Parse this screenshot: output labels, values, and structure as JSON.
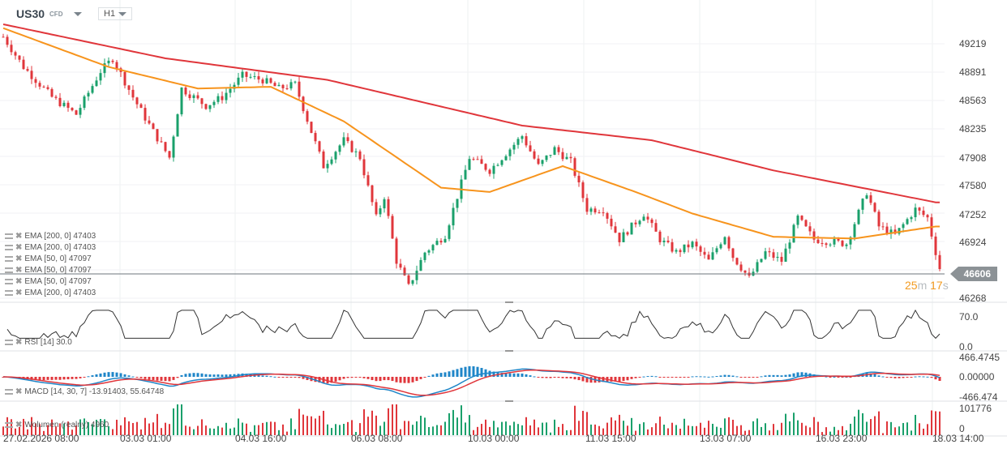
{
  "header": {
    "symbol": "US30",
    "type": "CFD",
    "timeframe": "H1"
  },
  "countdown": {
    "min": "25",
    "min_unit": "m",
    "sec": "17",
    "sec_unit": "s"
  },
  "current_price": "46606",
  "legends": {
    "ema": [
      "EMA [200, 0] 47403",
      "EMA [200, 0] 47403",
      "EMA [50, 0] 47097",
      "EMA [50, 0] 47097",
      "EMA [50, 0] 47097",
      "EMA [200, 0] 47403"
    ],
    "rsi": "RSI [14] 30.0",
    "macd": "MACD [14, 30, 7] -13.91403,  55.64748",
    "volume": "Wolumen  (realny)  4960"
  },
  "colors": {
    "up": "#1aa06b",
    "down": "#e0363b",
    "ema200": "#e0363b",
    "ema50": "#f7941d",
    "macd": "#1f86c8",
    "signal": "#e0363b",
    "rsi": "#333333"
  },
  "chart_data": {
    "type": "candlestick",
    "price_axis": {
      "ticks": [
        "49219",
        "48891",
        "48563",
        "48235",
        "47908",
        "47580",
        "47252",
        "46924",
        "46606",
        "46268"
      ],
      "range": [
        46100,
        49600
      ]
    },
    "time_axis": [
      "27.02.2026  08:00",
      "03.03  01:00",
      "04.03  16:00",
      "06.03  08:00",
      "10.03  00:00",
      "11.03  15:00",
      "13.03  07:00",
      "16.03  23:00",
      "18.03  14:00"
    ],
    "bars": 231,
    "close_path": [
      [
        0,
        49300
      ],
      [
        5,
        48950
      ],
      [
        12,
        48600
      ],
      [
        18,
        48400
      ],
      [
        24,
        48900
      ],
      [
        27,
        49050
      ],
      [
        32,
        48600
      ],
      [
        37,
        48200
      ],
      [
        41,
        47900
      ],
      [
        44,
        48700
      ],
      [
        50,
        48500
      ],
      [
        54,
        48600
      ],
      [
        59,
        48850
      ],
      [
        64,
        48800
      ],
      [
        68,
        48700
      ],
      [
        72,
        48750
      ],
      [
        76,
        48200
      ],
      [
        79,
        47800
      ],
      [
        84,
        48100
      ],
      [
        88,
        47900
      ],
      [
        92,
        47200
      ],
      [
        94,
        47450
      ],
      [
        97,
        46700
      ],
      [
        100,
        46400
      ],
      [
        104,
        46800
      ],
      [
        109,
        47000
      ],
      [
        113,
        47600
      ],
      [
        115,
        47900
      ],
      [
        120,
        47750
      ],
      [
        124,
        47950
      ],
      [
        128,
        48150
      ],
      [
        132,
        47800
      ],
      [
        136,
        48000
      ],
      [
        140,
        47850
      ],
      [
        144,
        47300
      ],
      [
        148,
        47300
      ],
      [
        152,
        46950
      ],
      [
        158,
        47250
      ],
      [
        162,
        46950
      ],
      [
        166,
        46800
      ],
      [
        170,
        46900
      ],
      [
        174,
        46700
      ],
      [
        178,
        47000
      ],
      [
        180,
        46750
      ],
      [
        184,
        46500
      ],
      [
        188,
        46800
      ],
      [
        192,
        46700
      ],
      [
        196,
        47200
      ],
      [
        200,
        46950
      ],
      [
        208,
        46900
      ],
      [
        213,
        47500
      ],
      [
        216,
        47100
      ],
      [
        220,
        47000
      ],
      [
        225,
        47300
      ],
      [
        228,
        47200
      ],
      [
        231,
        46606
      ]
    ],
    "ema200_path": [
      [
        0,
        49445
      ],
      [
        40,
        49050
      ],
      [
        80,
        48800
      ],
      [
        128,
        48270
      ],
      [
        160,
        48100
      ],
      [
        190,
        47750
      ],
      [
        230,
        47380
      ]
    ],
    "ema50_path": [
      [
        0,
        49400
      ],
      [
        26,
        48950
      ],
      [
        48,
        48700
      ],
      [
        66,
        48720
      ],
      [
        84,
        48320
      ],
      [
        108,
        47550
      ],
      [
        120,
        47500
      ],
      [
        138,
        47800
      ],
      [
        156,
        47500
      ],
      [
        170,
        47250
      ],
      [
        190,
        46980
      ],
      [
        210,
        46960
      ],
      [
        230,
        47100
      ]
    ],
    "rsi": {
      "levels": [
        "70.0",
        "0.0"
      ],
      "range": [
        0,
        100
      ]
    },
    "macd": {
      "levels": [
        "466.4745",
        "0.00000",
        "-466.474"
      ]
    },
    "volume": {
      "levels": [
        "101776",
        "0"
      ]
    }
  }
}
